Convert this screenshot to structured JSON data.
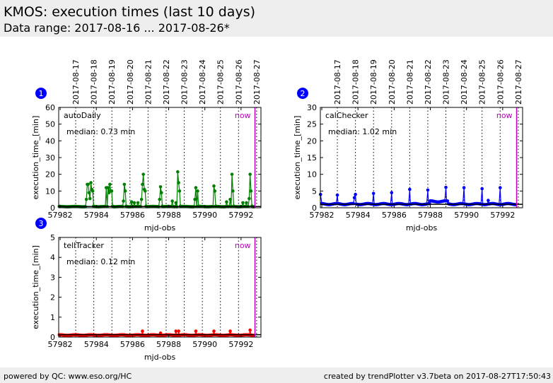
{
  "header": {
    "title": "KMOS: execution times (last 10 days)",
    "subtitle": "Data range: 2017-08-16 ... 2017-08-26*"
  },
  "footer": {
    "left": "powered by QC: www.eso.org/HC",
    "right": "created by trendPlotter v3.7beta on 2017-08-27T17:50:43"
  },
  "colors": {
    "autoDaily": "#008000",
    "calChecker": "#0000ff",
    "tellTracker": "#ff0000",
    "now": "#bf00bf",
    "badge": "#0000ff"
  },
  "chart_data": [
    {
      "type": "line",
      "badge": "1",
      "name": "autoDaily",
      "median_label": "median: 0.73 min",
      "median": 0.73,
      "now_label": "now",
      "now": 57992.77,
      "xlabel": "mjd-obs",
      "ylabel": "execution_time_[min]",
      "xlim": [
        57981.92,
        57993.1
      ],
      "ylim": [
        0,
        60
      ],
      "xticks": [
        57982,
        57984,
        57986,
        57988,
        57990,
        57992
      ],
      "yticks": [
        0,
        10,
        20,
        30,
        40,
        50,
        60
      ],
      "date_labels": [
        "2017-08-17",
        "2017-08-18",
        "2017-08-19",
        "2017-08-20",
        "2017-08-21",
        "2017-08-22",
        "2017-08-23",
        "2017-08-24",
        "2017-08-25",
        "2017-08-26",
        "2017-08-27"
      ],
      "date_start": 57982.86,
      "baseline": 0.7,
      "points": [
        [
          57983.45,
          5
        ],
        [
          57983.5,
          14
        ],
        [
          57983.55,
          14
        ],
        [
          57983.6,
          9
        ],
        [
          57983.65,
          5.5
        ],
        [
          57983.7,
          15
        ],
        [
          57983.75,
          11
        ],
        [
          57983.8,
          10
        ],
        [
          57983.85,
          1
        ],
        [
          57984.55,
          12
        ],
        [
          57984.65,
          12
        ],
        [
          57984.7,
          9
        ],
        [
          57984.75,
          14
        ],
        [
          57984.8,
          10
        ],
        [
          57984.85,
          10
        ],
        [
          57984.9,
          1
        ],
        [
          57985.5,
          4
        ],
        [
          57985.55,
          14
        ],
        [
          57985.6,
          10
        ],
        [
          57985.65,
          1
        ],
        [
          57985.95,
          3.5
        ],
        [
          57986.1,
          3
        ],
        [
          57986.3,
          3
        ],
        [
          57986.5,
          5
        ],
        [
          57986.55,
          14
        ],
        [
          57986.6,
          20
        ],
        [
          57986.65,
          11
        ],
        [
          57986.7,
          10
        ],
        [
          57986.75,
          1
        ],
        [
          57987.5,
          5
        ],
        [
          57987.55,
          12.5
        ],
        [
          57987.6,
          9
        ],
        [
          57987.65,
          1
        ],
        [
          57988.2,
          4
        ],
        [
          57988.4,
          3
        ],
        [
          57988.5,
          21.5
        ],
        [
          57988.55,
          15
        ],
        [
          57988.6,
          10
        ],
        [
          57988.65,
          1
        ],
        [
          57989.45,
          5
        ],
        [
          57989.5,
          12
        ],
        [
          57989.6,
          10
        ],
        [
          57989.65,
          1
        ],
        [
          57990.5,
          13
        ],
        [
          57990.55,
          10
        ],
        [
          57990.6,
          1
        ],
        [
          57991.2,
          3.5
        ],
        [
          57991.4,
          5
        ],
        [
          57991.5,
          20
        ],
        [
          57991.55,
          10
        ],
        [
          57991.6,
          1
        ],
        [
          57992.1,
          3
        ],
        [
          57992.3,
          3
        ],
        [
          57992.45,
          5.5
        ],
        [
          57992.5,
          20
        ],
        [
          57992.55,
          10
        ],
        [
          57992.6,
          1
        ]
      ]
    },
    {
      "type": "line",
      "badge": "2",
      "name": "calChecker",
      "median_label": "median: 1.02 min",
      "median": 1.02,
      "now_label": "now",
      "now": 57992.77,
      "xlabel": "mjd-obs",
      "ylabel": "execution_time_[min]",
      "xlim": [
        57981.92,
        57993.1
      ],
      "ylim": [
        0,
        30
      ],
      "xticks": [
        57982,
        57984,
        57986,
        57988,
        57990,
        57992
      ],
      "yticks": [
        0,
        5,
        10,
        15,
        20,
        25,
        30
      ],
      "date_labels": [
        "2017-08-17",
        "2017-08-18",
        "2017-08-19",
        "2017-08-20",
        "2017-08-21",
        "2017-08-22",
        "2017-08-23",
        "2017-08-24",
        "2017-08-25",
        "2017-08-26",
        "2017-08-27"
      ],
      "date_start": 57982.86,
      "baseline": 1.1,
      "points": [
        [
          57981.93,
          4
        ],
        [
          57982.86,
          3.8
        ],
        [
          57983.8,
          3
        ],
        [
          57983.86,
          4
        ],
        [
          57984.86,
          4.3
        ],
        [
          57985.86,
          4.5
        ],
        [
          57986.86,
          5.5
        ],
        [
          57987.86,
          5.3
        ],
        [
          57988.86,
          6.1
        ],
        [
          57989.86,
          6
        ],
        [
          57990.86,
          5.7
        ],
        [
          57991.2,
          2.2
        ],
        [
          57991.86,
          6
        ]
      ]
    },
    {
      "type": "line",
      "badge": "3",
      "name": "tellTracker",
      "median_label": "median: 0.12 min",
      "median": 0.12,
      "now_label": "now",
      "now": 57992.77,
      "xlabel": "mjd-obs",
      "ylabel": "execution_time_[min]",
      "xlim": [
        57981.92,
        57993.1
      ],
      "ylim": [
        0,
        5
      ],
      "xticks": [
        57982,
        57984,
        57986,
        57988,
        57990,
        57992
      ],
      "yticks": [
        0,
        1,
        2,
        3,
        4,
        5
      ],
      "date_labels": [],
      "date_start": 57982.86,
      "baseline": 0.1,
      "points": [
        [
          57986.55,
          0.3
        ],
        [
          57987.55,
          0.2
        ],
        [
          57988.4,
          0.3
        ],
        [
          57988.55,
          0.3
        ],
        [
          57989.5,
          0.3
        ],
        [
          57990.5,
          0.3
        ],
        [
          57991.4,
          0.3
        ],
        [
          57992.5,
          0.35
        ]
      ]
    }
  ]
}
